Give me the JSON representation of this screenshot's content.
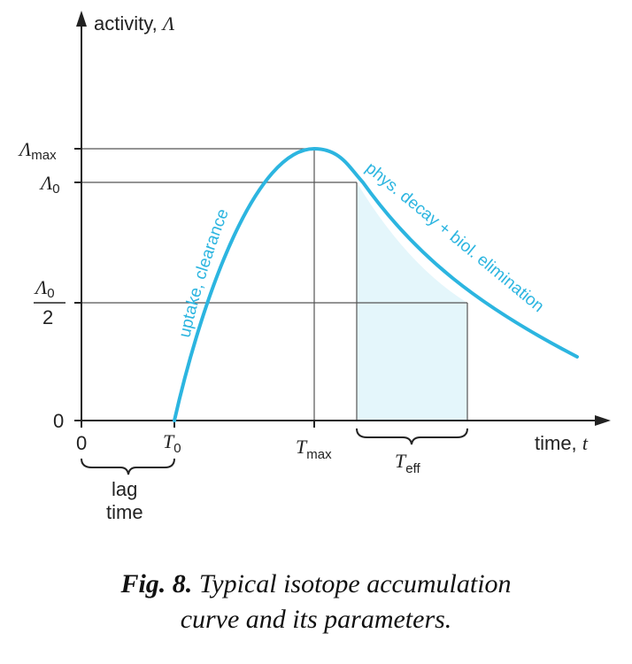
{
  "axes": {
    "y_label": "activity,",
    "y_symbol": "Λ",
    "x_label": "time,",
    "x_symbol": "t"
  },
  "y_ticks": {
    "lambda_max": {
      "symbol": "Λ",
      "sub": "max"
    },
    "lambda_0": {
      "symbol": "Λ",
      "sub": "0"
    },
    "half": {
      "symbol": "Λ",
      "sub": "0",
      "den": "2"
    },
    "zero": "0"
  },
  "x_ticks": {
    "zero": "0",
    "t0": {
      "symbol": "T",
      "sub": "0"
    },
    "tmax": {
      "symbol": "T",
      "sub": "max"
    }
  },
  "brackets": {
    "lag_line1": "lag",
    "lag_line2": "time",
    "teff": {
      "symbol": "T",
      "sub": "eff"
    }
  },
  "curve_labels": {
    "rise": "uptake, clearance",
    "decay": "phys. decay + biol. elimination"
  },
  "colors": {
    "curve": "#2cb5e0",
    "shade": "#e4f6fb",
    "axis": "#222222",
    "guide": "#555555"
  },
  "caption": {
    "figno": "Fig. 8.",
    "line1": "Typical isotope accumulation",
    "line2": "curve and its parameters."
  }
}
